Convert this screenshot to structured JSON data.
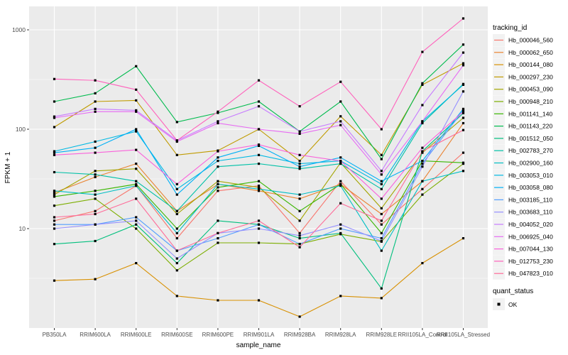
{
  "chart_data": {
    "type": "line",
    "title": "",
    "xlabel": "sample_name",
    "ylabel": "FPKM + 1",
    "y_scale": "log10",
    "ylim": [
      1,
      1700
    ],
    "grid": true,
    "legend_position": "right",
    "legend_title": "tracking_id",
    "legend2_title": "quant_status",
    "legend2_items": [
      "OK"
    ],
    "y_ticks": [
      10,
      100,
      1000
    ],
    "y_tick_labels": [
      "10",
      "100",
      "1000"
    ],
    "y_minor_breaks": [
      3.162,
      31.62,
      316.2
    ],
    "categories": [
      "PB350LA",
      "RRIM600LA",
      "RRIM600LE",
      "RRIM600SE",
      "RRIM600PE",
      "RRIM901LA",
      "RRIM928BA",
      "RRIM928LA",
      "RRIM928LE",
      "RRII105LA_Control",
      "RRII105LA_Stressed"
    ],
    "point_shape": "filled-square",
    "point_color": "#000000",
    "panel_bg": "#EBEBEB",
    "grid_color": "#FFFFFF",
    "axis_text_color": "#4D4D4D",
    "legend_key_bg": "#F2F2F2",
    "series": [
      {
        "name": "Hb_000046_560",
        "color": "#F8766D",
        "values": [
          12,
          15,
          27,
          8,
          24,
          27,
          9,
          30,
          11,
          25,
          58
        ]
      },
      {
        "name": "Hb_000062_650",
        "color": "#EA8331",
        "values": [
          23,
          33,
          45,
          15,
          28,
          24,
          20,
          28,
          14,
          30,
          115
        ]
      },
      {
        "name": "Hb_000144_080",
        "color": "#D89000",
        "values": [
          3.0,
          3.1,
          4.5,
          2.1,
          1.9,
          1.9,
          1.3,
          2.1,
          2.0,
          4.5,
          8.0
        ]
      },
      {
        "name": "Hb_000297_230",
        "color": "#C09B00",
        "values": [
          105,
          190,
          195,
          55,
          61,
          100,
          48,
          135,
          55,
          280,
          460
        ]
      },
      {
        "name": "Hb_000453_090",
        "color": "#A3A500",
        "values": [
          22,
          38,
          40,
          14,
          30,
          26,
          12,
          46,
          16,
          58,
          130
        ]
      },
      {
        "name": "Hb_000948_210",
        "color": "#7CAE00",
        "values": [
          17,
          20,
          10,
          3.8,
          7.2,
          7.2,
          7,
          8.8,
          7.4,
          22,
          45
        ]
      },
      {
        "name": "Hb_001141_140",
        "color": "#39B600",
        "values": [
          21,
          24,
          28,
          10,
          26,
          30,
          15,
          28,
          9,
          48,
          46
        ]
      },
      {
        "name": "Hb_001143_220",
        "color": "#00BB4E",
        "values": [
          190,
          230,
          430,
          118,
          146,
          190,
          95,
          190,
          50,
          290,
          710
        ]
      },
      {
        "name": "Hb_001512_050",
        "color": "#00BF7D",
        "values": [
          7,
          7.5,
          11,
          4.5,
          12,
          11,
          8,
          9,
          2.5,
          60,
          145
        ]
      },
      {
        "name": "Hb_002783_270",
        "color": "#00C1A7",
        "values": [
          37,
          35,
          30,
          15,
          42,
          45,
          40,
          45,
          25,
          115,
          285
        ]
      },
      {
        "name": "Hb_002900_160",
        "color": "#00BFC4",
        "values": [
          24,
          22,
          27,
          9,
          28,
          25,
          22,
          27,
          6,
          30,
          38
        ]
      },
      {
        "name": "Hb_003053_010",
        "color": "#00B9E3",
        "values": [
          60,
          75,
          95,
          25,
          48,
          55,
          45,
          48,
          28,
          120,
          280
        ]
      },
      {
        "name": "Hb_003058_080",
        "color": "#00B0F6",
        "values": [
          58,
          65,
          100,
          22,
          52,
          68,
          42,
          52,
          30,
          48,
          160
        ]
      },
      {
        "name": "Hb_003185_110",
        "color": "#529EFF",
        "values": [
          11,
          11,
          13,
          6,
          8,
          11,
          7,
          10,
          8,
          45,
          155
        ]
      },
      {
        "name": "Hb_003683_110",
        "color": "#9590FF",
        "values": [
          10,
          11,
          12,
          5,
          9,
          10,
          8.5,
          11,
          7.5,
          42,
          240
        ]
      },
      {
        "name": "Hb_004052_020",
        "color": "#C77CFF",
        "values": [
          134,
          160,
          155,
          77,
          120,
          170,
          95,
          120,
          38,
          175,
          590
        ]
      },
      {
        "name": "Hb_006925_040",
        "color": "#E76BF3",
        "values": [
          130,
          150,
          150,
          75,
          115,
          100,
          90,
          110,
          35,
          120,
          440
        ]
      },
      {
        "name": "Hb_007044_130",
        "color": "#FA62DB",
        "values": [
          55,
          58,
          62,
          28,
          60,
          70,
          55,
          48,
          20,
          65,
          150
        ]
      },
      {
        "name": "Hb_012753_230",
        "color": "#FF62BC",
        "values": [
          320,
          310,
          250,
          77,
          150,
          310,
          170,
          300,
          100,
          600,
          1300
        ]
      },
      {
        "name": "Hb_047823_010",
        "color": "#FF6A98",
        "values": [
          13,
          14,
          20,
          6,
          9,
          12,
          6.5,
          18,
          12,
          60,
          98
        ]
      }
    ]
  }
}
